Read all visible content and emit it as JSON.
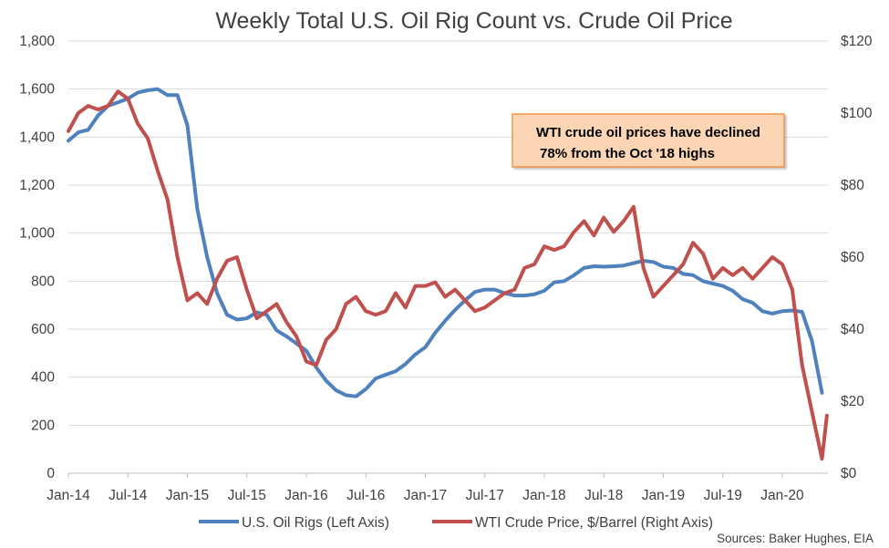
{
  "chart_data": {
    "type": "line",
    "title": "Weekly Total U.S. Oil Rig Count vs. Crude Oil Price",
    "x_ticks": [
      "Jan-14",
      "Jul-14",
      "Jan-15",
      "Jul-15",
      "Jan-16",
      "Jul-16",
      "Jan-17",
      "Jul-17",
      "Jan-18",
      "Jul-18",
      "Jan-19",
      "Jul-19",
      "Jan-20"
    ],
    "x_range": [
      "2014-01",
      "2020-04"
    ],
    "y_left": {
      "ticks": [
        "0",
        "200",
        "400",
        "600",
        "800",
        "1,000",
        "1,200",
        "1,400",
        "1,600",
        "1,800"
      ],
      "range": [
        0,
        1800
      ]
    },
    "y_right": {
      "ticks": [
        "$0",
        "$20",
        "$40",
        "$60",
        "$80",
        "$100",
        "$120"
      ],
      "range": [
        0,
        120
      ]
    },
    "grid": true,
    "legend_position": "bottom",
    "annotation": {
      "line1": "WTI crude oil prices have declined",
      "line2": "78% from the Oct '18 highs"
    },
    "source": "Sources: Baker Hughes, EIA",
    "colors": {
      "rigs": "#4f81bd",
      "price": "#c0504d",
      "annotation_fill": "#fcd5b4",
      "annotation_border": "#f79646",
      "grid": "#d9d9d9"
    },
    "series": [
      {
        "name": "U.S. Oil Rigs (Left Axis)",
        "axis": "left",
        "points": [
          [
            "2014-01",
            1385
          ],
          [
            "2014-02",
            1420
          ],
          [
            "2014-03",
            1430
          ],
          [
            "2014-04",
            1490
          ],
          [
            "2014-05",
            1530
          ],
          [
            "2014-06",
            1545
          ],
          [
            "2014-07",
            1560
          ],
          [
            "2014-08",
            1585
          ],
          [
            "2014-09",
            1595
          ],
          [
            "2014-10",
            1600
          ],
          [
            "2014-11",
            1575
          ],
          [
            "2014-12",
            1575
          ],
          [
            "2015-01",
            1450
          ],
          [
            "2015-02",
            1100
          ],
          [
            "2015-03",
            900
          ],
          [
            "2015-04",
            750
          ],
          [
            "2015-05",
            660
          ],
          [
            "2015-06",
            640
          ],
          [
            "2015-07",
            645
          ],
          [
            "2015-08",
            670
          ],
          [
            "2015-09",
            660
          ],
          [
            "2015-10",
            595
          ],
          [
            "2015-11",
            570
          ],
          [
            "2015-12",
            540
          ],
          [
            "2016-01",
            510
          ],
          [
            "2016-02",
            440
          ],
          [
            "2016-03",
            385
          ],
          [
            "2016-04",
            345
          ],
          [
            "2016-05",
            325
          ],
          [
            "2016-06",
            320
          ],
          [
            "2016-07",
            350
          ],
          [
            "2016-08",
            395
          ],
          [
            "2016-09",
            410
          ],
          [
            "2016-10",
            425
          ],
          [
            "2016-11",
            455
          ],
          [
            "2016-12",
            495
          ],
          [
            "2017-01",
            525
          ],
          [
            "2017-02",
            585
          ],
          [
            "2017-03",
            635
          ],
          [
            "2017-04",
            680
          ],
          [
            "2017-05",
            720
          ],
          [
            "2017-06",
            755
          ],
          [
            "2017-07",
            765
          ],
          [
            "2017-08",
            765
          ],
          [
            "2017-09",
            750
          ],
          [
            "2017-10",
            740
          ],
          [
            "2017-11",
            740
          ],
          [
            "2017-12",
            745
          ],
          [
            "2018-01",
            760
          ],
          [
            "2018-02",
            795
          ],
          [
            "2018-03",
            800
          ],
          [
            "2018-04",
            825
          ],
          [
            "2018-05",
            855
          ],
          [
            "2018-06",
            862
          ],
          [
            "2018-07",
            860
          ],
          [
            "2018-08",
            862
          ],
          [
            "2018-09",
            865
          ],
          [
            "2018-10",
            875
          ],
          [
            "2018-11",
            885
          ],
          [
            "2018-12",
            880
          ],
          [
            "2019-01",
            860
          ],
          [
            "2019-02",
            855
          ],
          [
            "2019-03",
            830
          ],
          [
            "2019-04",
            825
          ],
          [
            "2019-05",
            800
          ],
          [
            "2019-06",
            790
          ],
          [
            "2019-07",
            780
          ],
          [
            "2019-08",
            760
          ],
          [
            "2019-09",
            725
          ],
          [
            "2019-10",
            710
          ],
          [
            "2019-11",
            675
          ],
          [
            "2019-12",
            665
          ],
          [
            "2020-01",
            675
          ],
          [
            "2020-02",
            678
          ],
          [
            "2020-03",
            672
          ],
          [
            "2020-04",
            550
          ],
          [
            "2020-05",
            335
          ]
        ]
      },
      {
        "name": "WTI Crude Price, $/Barrel (Right Axis)",
        "axis": "right",
        "points": [
          [
            "2014-01",
            95
          ],
          [
            "2014-02",
            100
          ],
          [
            "2014-03",
            102
          ],
          [
            "2014-04",
            101
          ],
          [
            "2014-05",
            102
          ],
          [
            "2014-06",
            106
          ],
          [
            "2014-07",
            104
          ],
          [
            "2014-08",
            97
          ],
          [
            "2014-09",
            93
          ],
          [
            "2014-10",
            84
          ],
          [
            "2014-11",
            76
          ],
          [
            "2014-12",
            60
          ],
          [
            "2015-01",
            48
          ],
          [
            "2015-02",
            50
          ],
          [
            "2015-03",
            47
          ],
          [
            "2015-04",
            54
          ],
          [
            "2015-05",
            59
          ],
          [
            "2015-06",
            60
          ],
          [
            "2015-07",
            51
          ],
          [
            "2015-08",
            43
          ],
          [
            "2015-09",
            45
          ],
          [
            "2015-10",
            47
          ],
          [
            "2015-11",
            42
          ],
          [
            "2015-12",
            38
          ],
          [
            "2016-01",
            31
          ],
          [
            "2016-02",
            30
          ],
          [
            "2016-03",
            37
          ],
          [
            "2016-04",
            40
          ],
          [
            "2016-05",
            47
          ],
          [
            "2016-06",
            49
          ],
          [
            "2016-07",
            45
          ],
          [
            "2016-08",
            44
          ],
          [
            "2016-09",
            45
          ],
          [
            "2016-10",
            50
          ],
          [
            "2016-11",
            46
          ],
          [
            "2016-12",
            52
          ],
          [
            "2017-01",
            52
          ],
          [
            "2017-02",
            53
          ],
          [
            "2017-03",
            49
          ],
          [
            "2017-04",
            51
          ],
          [
            "2017-05",
            48
          ],
          [
            "2017-06",
            45
          ],
          [
            "2017-07",
            46
          ],
          [
            "2017-08",
            48
          ],
          [
            "2017-09",
            50
          ],
          [
            "2017-10",
            51
          ],
          [
            "2017-11",
            57
          ],
          [
            "2017-12",
            58
          ],
          [
            "2018-01",
            63
          ],
          [
            "2018-02",
            62
          ],
          [
            "2018-03",
            63
          ],
          [
            "2018-04",
            67
          ],
          [
            "2018-05",
            70
          ],
          [
            "2018-06",
            66
          ],
          [
            "2018-07",
            71
          ],
          [
            "2018-08",
            67
          ],
          [
            "2018-09",
            70
          ],
          [
            "2018-10",
            74
          ],
          [
            "2018-11",
            57
          ],
          [
            "2018-12",
            49
          ],
          [
            "2019-01",
            52
          ],
          [
            "2019-02",
            55
          ],
          [
            "2019-03",
            58
          ],
          [
            "2019-04",
            64
          ],
          [
            "2019-05",
            61
          ],
          [
            "2019-06",
            54
          ],
          [
            "2019-07",
            57
          ],
          [
            "2019-08",
            55
          ],
          [
            "2019-09",
            57
          ],
          [
            "2019-10",
            54
          ],
          [
            "2019-11",
            57
          ],
          [
            "2019-12",
            60
          ],
          [
            "2020-01",
            58
          ],
          [
            "2020-02",
            51
          ],
          [
            "2020-03",
            30
          ],
          [
            "2020-04",
            17
          ],
          [
            "2020-05",
            4
          ],
          [
            "2020-05b",
            16
          ]
        ]
      }
    ]
  }
}
